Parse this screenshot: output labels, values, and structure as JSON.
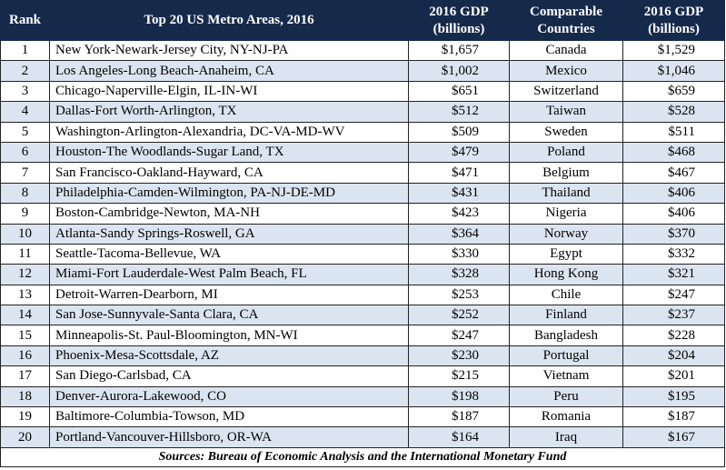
{
  "header": {
    "rank": "Rank",
    "metro": "Top 20 US Metro Areas, 2016",
    "gdp_metro_line1": "2016 GDP",
    "gdp_metro_line2": "(billions)",
    "countries_line1": "Comparable",
    "countries_line2": "Countries",
    "gdp_country_line1": "2016 GDP",
    "gdp_country_line2": "(billions)"
  },
  "rows": [
    {
      "rank": "1",
      "metro": "New York-Newark-Jersey City, NY-NJ-PA",
      "gdp": "$1,657",
      "country": "Canada",
      "country_gdp": "$1,529"
    },
    {
      "rank": "2",
      "metro": "Los Angeles-Long Beach-Anaheim, CA",
      "gdp": "$1,002",
      "country": "Mexico",
      "country_gdp": "$1,046"
    },
    {
      "rank": "3",
      "metro": "Chicago-Naperville-Elgin, IL-IN-WI",
      "gdp": "$651",
      "country": "Switzerland",
      "country_gdp": "$659"
    },
    {
      "rank": "4",
      "metro": "Dallas-Fort Worth-Arlington, TX",
      "gdp": "$512",
      "country": "Taiwan",
      "country_gdp": "$528"
    },
    {
      "rank": "5",
      "metro": "Washington-Arlington-Alexandria, DC-VA-MD-WV",
      "gdp": "$509",
      "country": "Sweden",
      "country_gdp": "$511"
    },
    {
      "rank": "6",
      "metro": "Houston-The Woodlands-Sugar Land, TX",
      "gdp": "$479",
      "country": "Poland",
      "country_gdp": "$468"
    },
    {
      "rank": "7",
      "metro": "San Francisco-Oakland-Hayward, CA",
      "gdp": "$471",
      "country": "Belgium",
      "country_gdp": "$467"
    },
    {
      "rank": "8",
      "metro": "Philadelphia-Camden-Wilmington, PA-NJ-DE-MD",
      "gdp": "$431",
      "country": "Thailand",
      "country_gdp": "$406"
    },
    {
      "rank": "9",
      "metro": "Boston-Cambridge-Newton, MA-NH",
      "gdp": "$423",
      "country": "Nigeria",
      "country_gdp": "$406"
    },
    {
      "rank": "10",
      "metro": "Atlanta-Sandy Springs-Roswell, GA",
      "gdp": "$364",
      "country": "Norway",
      "country_gdp": "$370"
    },
    {
      "rank": "11",
      "metro": "Seattle-Tacoma-Bellevue, WA",
      "gdp": "$330",
      "country": "Egypt",
      "country_gdp": "$332"
    },
    {
      "rank": "12",
      "metro": "Miami-Fort Lauderdale-West Palm Beach, FL",
      "gdp": "$328",
      "country": "Hong Kong",
      "country_gdp": "$321"
    },
    {
      "rank": "13",
      "metro": "Detroit-Warren-Dearborn, MI",
      "gdp": "$253",
      "country": "Chile",
      "country_gdp": "$247"
    },
    {
      "rank": "14",
      "metro": "San Jose-Sunnyvale-Santa Clara, CA",
      "gdp": "$252",
      "country": "Finland",
      "country_gdp": "$237"
    },
    {
      "rank": "15",
      "metro": "Minneapolis-St. Paul-Bloomington, MN-WI",
      "gdp": "$247",
      "country": "Bangladesh",
      "country_gdp": "$228"
    },
    {
      "rank": "16",
      "metro": "Phoenix-Mesa-Scottsdale, AZ",
      "gdp": "$230",
      "country": "Portugal",
      "country_gdp": "$204"
    },
    {
      "rank": "17",
      "metro": "San Diego-Carlsbad, CA",
      "gdp": "$215",
      "country": "Vietnam",
      "country_gdp": "$201"
    },
    {
      "rank": "18",
      "metro": "Denver-Aurora-Lakewood, CO",
      "gdp": "$198",
      "country": "Peru",
      "country_gdp": "$195"
    },
    {
      "rank": "19",
      "metro": "Baltimore-Columbia-Towson, MD",
      "gdp": "$187",
      "country": "Romania",
      "country_gdp": "$187"
    },
    {
      "rank": "20",
      "metro": "Portland-Vancouver-Hillsboro, OR-WA",
      "gdp": "$164",
      "country": "Iraq",
      "country_gdp": "$167"
    }
  ],
  "footer": {
    "sources": "Sources: Bureau of Economic Analysis and the International Monetary Fund"
  },
  "colors": {
    "header_bg": "#15294b",
    "header_text": "#ffffff",
    "stripe_bg": "#dbe5f1"
  }
}
